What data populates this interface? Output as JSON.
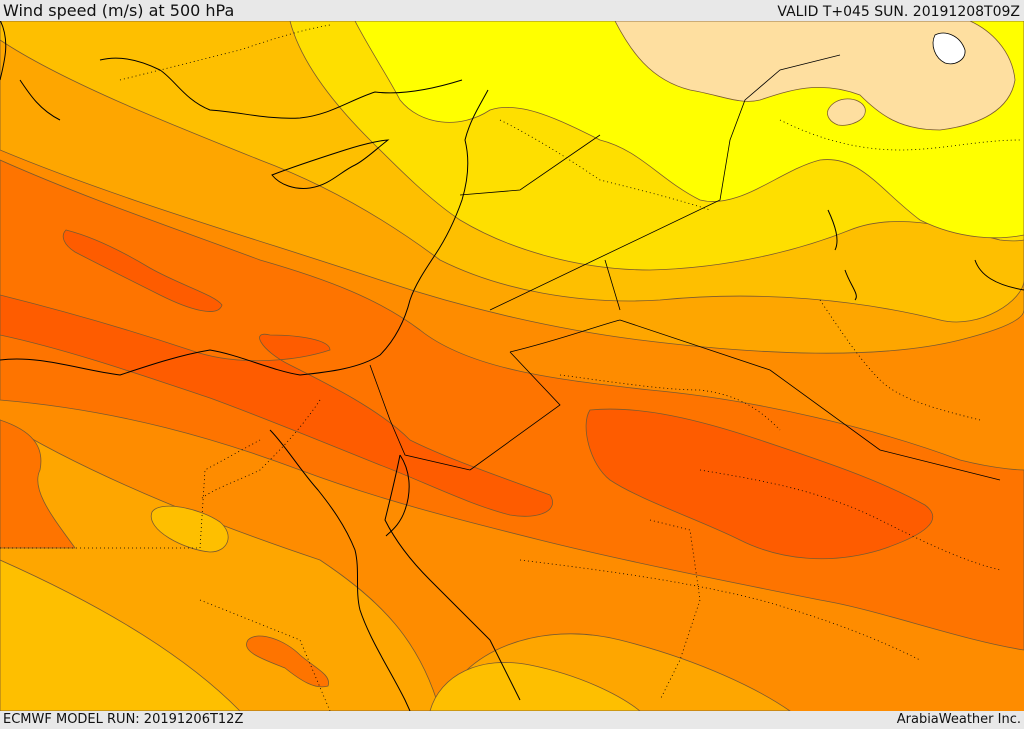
{
  "header": {
    "title": "Wind speed (m/s) at 500 hPa",
    "valid": "VALID T+045 SUN. 20191208T09Z"
  },
  "footer": {
    "model_run": "ECMWF MODEL RUN: 20191206T12Z",
    "credit": "ArabiaWeather Inc."
  },
  "colors": {
    "band_strongest": "#fe5c00",
    "band_strong": "#fe7400",
    "band_mid_high": "#fe8c00",
    "band_mid": "#fea600",
    "band_mid_low": "#febf00",
    "band_low": "#fedf00",
    "band_lower": "#ffff00",
    "band_lowest": "#fedfa0",
    "calm": "#ffffff",
    "contour": "#7a5a30",
    "coastline": "#000000"
  }
}
